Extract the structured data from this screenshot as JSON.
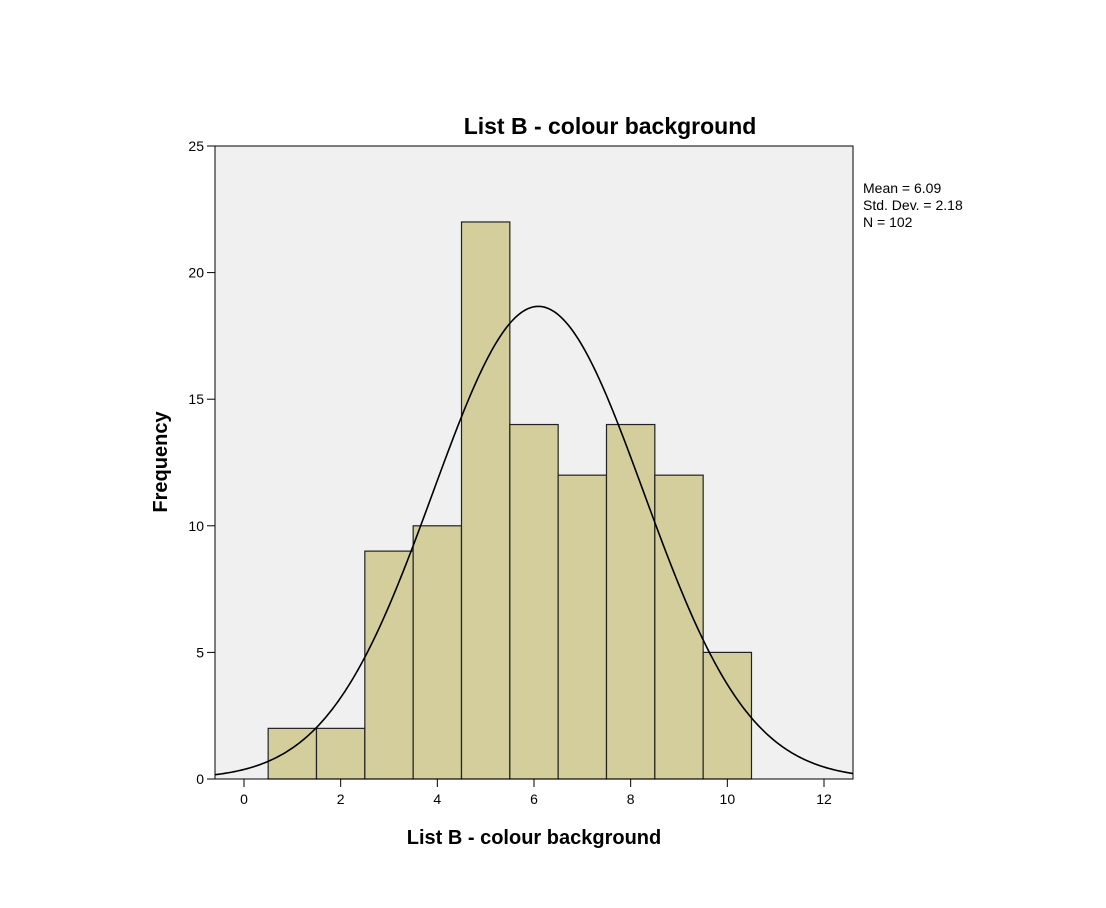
{
  "chart_data": {
    "type": "bar",
    "title": "List B - colour background",
    "xlabel": "List B - colour background",
    "ylabel": "Frequency",
    "xlim": [
      -0.6,
      12.6
    ],
    "ylim": [
      0,
      25
    ],
    "xticks": [
      0,
      2,
      4,
      6,
      8,
      10,
      12
    ],
    "yticks": [
      0,
      5,
      10,
      15,
      20,
      25
    ],
    "bin_width": 1,
    "bins": [
      {
        "center": 1,
        "value": 2
      },
      {
        "center": 2,
        "value": 2
      },
      {
        "center": 3,
        "value": 9
      },
      {
        "center": 4,
        "value": 10
      },
      {
        "center": 5,
        "value": 22
      },
      {
        "center": 6,
        "value": 14
      },
      {
        "center": 7,
        "value": 12
      },
      {
        "center": 8,
        "value": 14
      },
      {
        "center": 9,
        "value": 12
      },
      {
        "center": 10,
        "value": 5
      }
    ],
    "normal_curve": {
      "mean": 6.09,
      "std_dev": 2.18,
      "n": 102
    },
    "stats": [
      "Mean = 6.09",
      "Std. Dev. = 2.18",
      "N = 102"
    ],
    "grid": false,
    "colors": {
      "plot_background": "#f0f0f0",
      "bar_fill": "#d3ce9b",
      "bar_stroke": "#222222",
      "curve": "#000000"
    }
  }
}
